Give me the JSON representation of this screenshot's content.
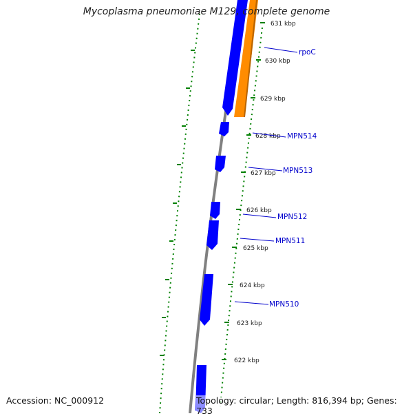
{
  "title": "Mycoplasma pneumoniae M129, complete genome",
  "footer": {
    "accession": "Accession: NC_000912",
    "topology": "Topology: circular; Length: 816,394 bp; Genes: 733"
  },
  "ticks": [
    "631 kbp",
    "630 kbp",
    "629 kbp",
    "628 kbp",
    "627 kbp",
    "626 kbp",
    "625 kbp",
    "624 kbp",
    "623 kbp",
    "622 kbp"
  ],
  "genes": [
    "rpoC",
    "MPN514",
    "MPN513",
    "MPN512",
    "MPN511",
    "MPN510"
  ],
  "colors": {
    "backbone": "#808080",
    "forward_cds": "#0000ff",
    "reverse_cds": "#ff8c00",
    "gc_content": "#008000",
    "label": "#0000cc",
    "tick": "#008000"
  }
}
